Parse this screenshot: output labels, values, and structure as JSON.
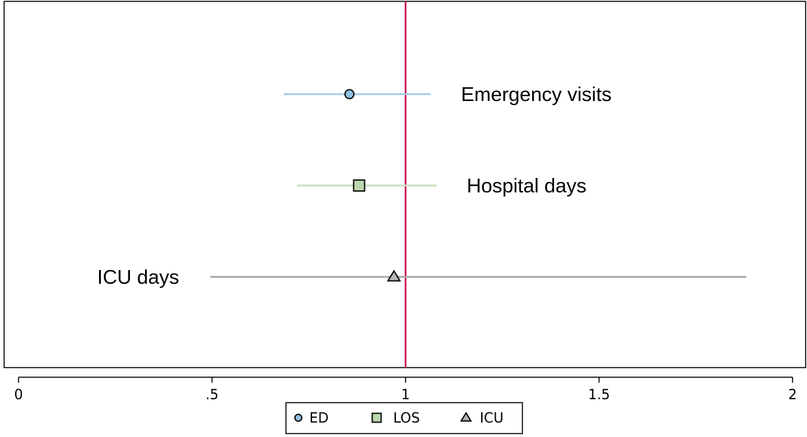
{
  "chart_data": {
    "type": "scatter",
    "subtype": "forest-plot",
    "title": "",
    "xlabel": "",
    "ylabel": "",
    "xlim": [
      0,
      2
    ],
    "x_ticks": [
      {
        "value": 0,
        "label": "0"
      },
      {
        "value": 0.5,
        "label": ".5"
      },
      {
        "value": 1,
        "label": "1"
      },
      {
        "value": 1.5,
        "label": "1.5"
      },
      {
        "value": 2,
        "label": "2"
      }
    ],
    "reference_line": {
      "x": 1,
      "color": "#c8174e"
    },
    "grid": false,
    "legend_position": "bottom-center",
    "series": [
      {
        "name": "ED",
        "label": "Emergency visits",
        "estimate": 0.855,
        "ci_low": 0.685,
        "ci_high": 1.065,
        "marker": "circle",
        "marker_color": "#8fc0e0",
        "line_color": "#a6cbe6",
        "label_side": "right"
      },
      {
        "name": "LOS",
        "label": "Hospital days",
        "estimate": 0.88,
        "ci_low": 0.72,
        "ci_high": 1.08,
        "marker": "square",
        "marker_color": "#bcd7b0",
        "line_color": "#c9dfbd",
        "label_side": "right"
      },
      {
        "name": "ICU",
        "label": "ICU days",
        "estimate": 0.97,
        "ci_low": 0.495,
        "ci_high": 1.88,
        "marker": "triangle",
        "marker_color": "#b5b5b5",
        "line_color": "#a8a8a8",
        "label_side": "left"
      }
    ]
  }
}
